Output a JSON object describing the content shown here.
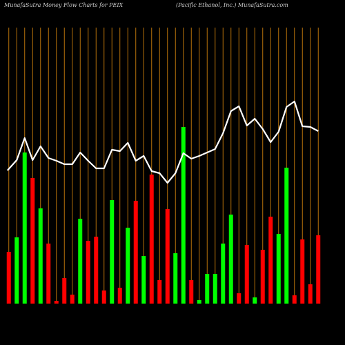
{
  "chart_data": {
    "type": "bar_line",
    "title": "MunafaSutra  Money Flow  Charts for PEIX",
    "subtitle": "(Pacific Ethanol,  Inc.) MunafaSutra.com",
    "ylim": [
      0,
      400
    ],
    "grid": true,
    "grid_color": "#b8730b",
    "values": [
      75,
      96,
      219,
      182,
      138,
      87,
      4,
      37,
      13,
      123,
      91,
      97,
      19,
      150,
      23,
      110,
      149,
      69,
      187,
      34,
      137,
      73,
      256,
      34,
      5,
      43,
      43,
      87,
      129,
      15,
      85,
      9,
      78,
      126,
      101,
      197,
      12,
      93,
      28,
      99
    ],
    "bar_colors": [
      "#ff0000",
      "#00ff00",
      "#00ff00",
      "#ff0000",
      "#00ff00",
      "#ff0000",
      "#ff0000",
      "#ff0000",
      "#ff0000",
      "#00ff00",
      "#ff0000",
      "#ff0000",
      "#ff0000",
      "#00ff00",
      "#ff0000",
      "#00ff00",
      "#ff0000",
      "#00ff00",
      "#ff0000",
      "#ff0000",
      "#ff0000",
      "#00ff00",
      "#00ff00",
      "#ff0000",
      "#00ff00",
      "#00ff00",
      "#00ff00",
      "#00ff00",
      "#00ff00",
      "#ff0000",
      "#ff0000",
      "#00ff00",
      "#ff0000",
      "#ff0000",
      "#00ff00",
      "#00ff00",
      "#ff0000",
      "#ff0000",
      "#ff0000",
      "#ff0000"
    ],
    "line_values": [
      193,
      208,
      240,
      208,
      228,
      211,
      207,
      202,
      202,
      219,
      207,
      196,
      196,
      223,
      221,
      233,
      207,
      214,
      192,
      189,
      175,
      189,
      218,
      210,
      214,
      219,
      224,
      247,
      279,
      286,
      258,
      268,
      253,
      234,
      249,
      285,
      293,
      257,
      256,
      250
    ],
    "line_color": "#ffffff"
  }
}
